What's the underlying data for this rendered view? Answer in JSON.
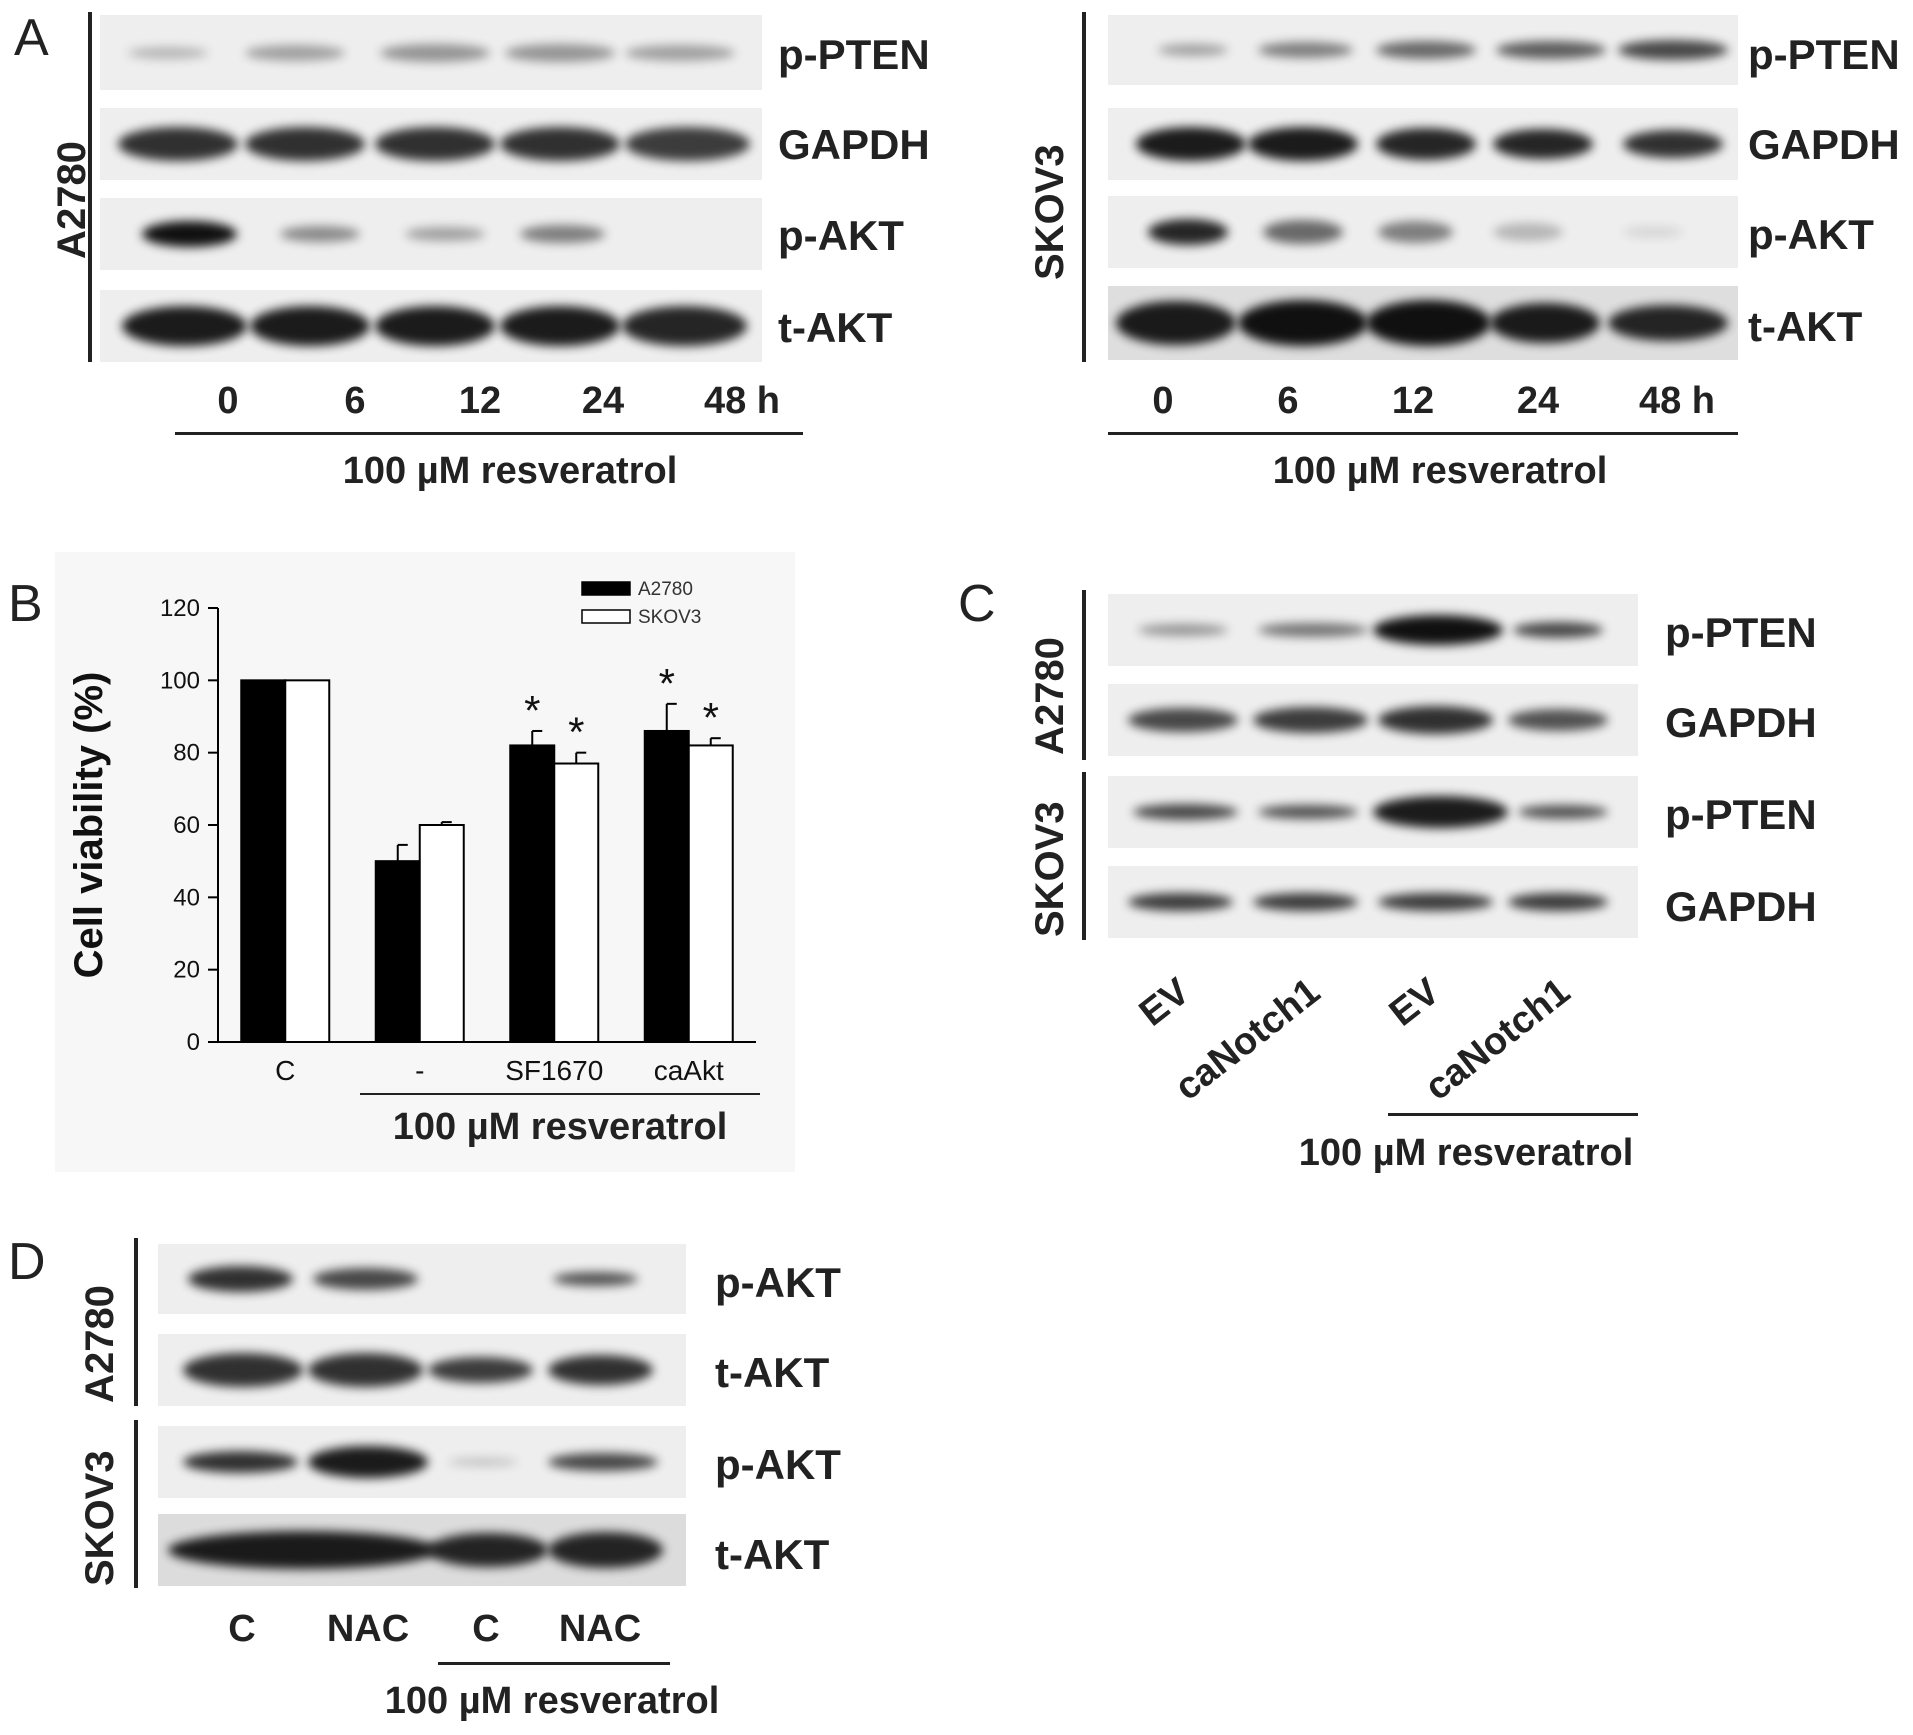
{
  "panel_a": {
    "letter": "A",
    "left": {
      "cell_line": "A2780",
      "proteins": [
        "p-PTEN",
        "GAPDH",
        "p-AKT",
        "t-AKT"
      ],
      "lanes": [
        "0",
        "6",
        "12",
        "24",
        "48 h"
      ],
      "treatment": "100 µM resveratrol"
    },
    "right": {
      "cell_line": "SKOV3",
      "proteins": [
        "p-PTEN",
        "GAPDH",
        "p-AKT",
        "t-AKT"
      ],
      "lanes": [
        "0",
        "6",
        "12",
        "24",
        "48 h"
      ],
      "treatment": "100 µM resveratrol"
    }
  },
  "panel_b": {
    "letter": "B",
    "treatment": "100 µM resveratrol"
  },
  "panel_c": {
    "letter": "C",
    "cell_lines": [
      "A2780",
      "SKOV3"
    ],
    "proteins": [
      "p-PTEN",
      "GAPDH",
      "p-PTEN",
      "GAPDH"
    ],
    "lanes": [
      "EV",
      "caNotch1",
      "EV",
      "caNotch1"
    ],
    "treatment": "100 µM resveratrol"
  },
  "panel_d": {
    "letter": "D",
    "cell_lines": [
      "A2780",
      "SKOV3"
    ],
    "proteins": [
      "p-AKT",
      "t-AKT",
      "p-AKT",
      "t-AKT"
    ],
    "lanes": [
      "C",
      "NAC",
      "C",
      "NAC"
    ],
    "treatment": "100 µM resveratrol"
  },
  "chart_data": {
    "type": "bar",
    "title": "",
    "xlabel": "",
    "ylabel": "Cell viability (%)",
    "ylim": [
      0,
      120
    ],
    "yticks": [
      "0",
      "20",
      "40",
      "60",
      "80",
      "100",
      "120"
    ],
    "categories": [
      "C",
      "-",
      "SF1670",
      "caAkt"
    ],
    "series": [
      {
        "name": "A2780",
        "values": [
          100,
          50,
          82,
          86
        ],
        "errors": [
          0,
          4.5,
          4,
          7.5
        ],
        "color": "#000000"
      },
      {
        "name": "SKOV3",
        "values": [
          100,
          60,
          77,
          82
        ],
        "errors": [
          0,
          0.8,
          3,
          2
        ],
        "color": "#ffffff"
      }
    ],
    "significance": [
      {
        "category": "SF1670",
        "series": "A2780",
        "mark": "*"
      },
      {
        "category": "SF1670",
        "series": "SKOV3",
        "mark": "*"
      },
      {
        "category": "caAkt",
        "series": "A2780",
        "mark": "*"
      },
      {
        "category": "caAkt",
        "series": "SKOV3",
        "mark": "*"
      }
    ],
    "legend_position": "top-right",
    "grid": false
  }
}
